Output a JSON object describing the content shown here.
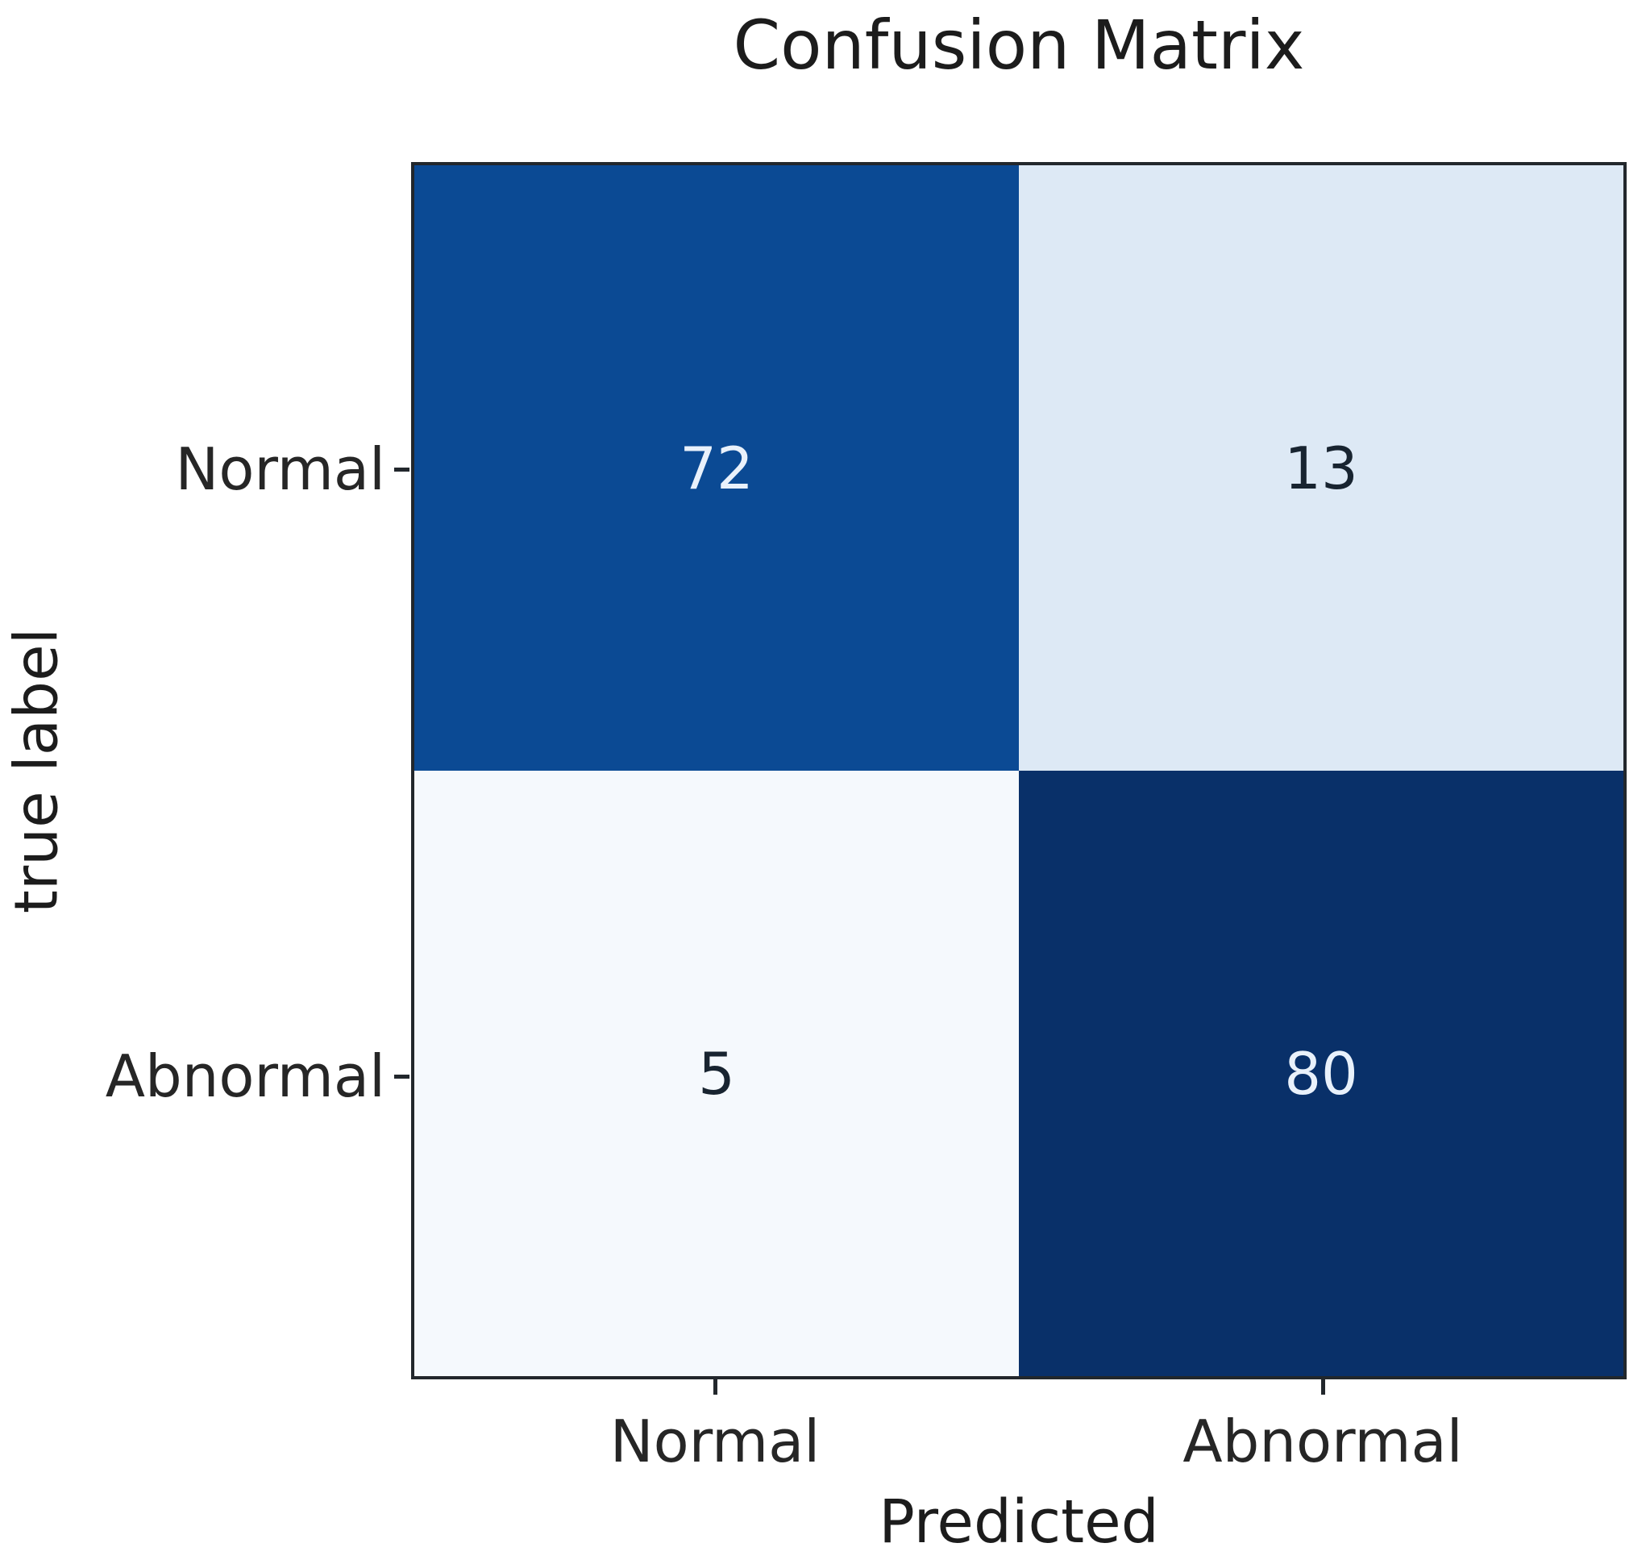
{
  "chart_data": {
    "type": "heatmap",
    "title": "Confusion Matrix",
    "xlabel": "Predicted",
    "ylabel": "true label",
    "x_tick_labels": [
      "Normal",
      "Abnormal"
    ],
    "y_tick_labels": [
      "Normal",
      "Abnormal"
    ],
    "rows": [
      "Normal",
      "Abnormal"
    ],
    "columns": [
      "Normal",
      "Abnormal"
    ],
    "matrix": [
      [
        72,
        13
      ],
      [
        5,
        80
      ]
    ],
    "colormap": "Blues",
    "grid": false,
    "legend": "none",
    "colors": {
      "axis_line": "#22272c",
      "dark_text": "#182430",
      "light_text": "#e9f1fb"
    },
    "cells": [
      {
        "true_label": "Normal",
        "predicted": "Normal",
        "value": "72",
        "bg": "#0b4a94",
        "fg": "#e9f1fb"
      },
      {
        "true_label": "Normal",
        "predicted": "Abnormal",
        "value": "13",
        "bg": "#dde9f5",
        "fg": "#182430"
      },
      {
        "true_label": "Abnormal",
        "predicted": "Normal",
        "value": "5",
        "bg": "#f5f9fd",
        "fg": "#182430"
      },
      {
        "true_label": "Abnormal",
        "predicted": "Abnormal",
        "value": "80",
        "bg": "#093069",
        "fg": "#e9f1fb"
      }
    ]
  }
}
